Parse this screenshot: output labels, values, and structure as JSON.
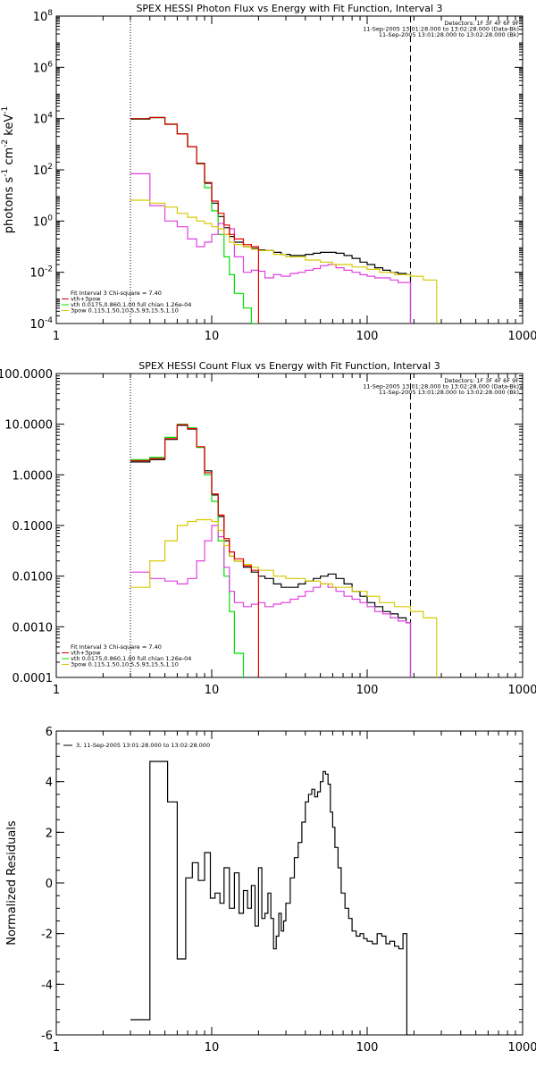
{
  "chart_data": [
    {
      "id": "photon",
      "type": "line",
      "title": "SPEX HESSI Photon Flux vs Energy with Fit Function, Interval 3",
      "ylabel_parts": [
        "photons s",
        "-1",
        " cm",
        "-2",
        " keV",
        "-1"
      ],
      "xlim": [
        1,
        1000
      ],
      "ylim": [
        0.0001,
        100000000
      ],
      "xscale": "log",
      "yscale": "log",
      "x_tick_labels": [
        "1",
        "10",
        "100",
        "1000"
      ],
      "y_tick_labels": [
        "10^-4",
        "10^-2",
        "10^0",
        "10^2",
        "10^4",
        "10^6",
        "10^8"
      ],
      "vlines": [
        {
          "x": 3,
          "style": "dotted"
        },
        {
          "x": 190,
          "style": "dashed"
        }
      ],
      "info_top": [
        "Detectors: 1F 3F 4F 6F 9F",
        "11-Sep-2005 13:01:28.000 to 13:02:28.000 (Data-Bk)",
        "11-Sep-2005 13:01:28.000 to 13:02:28.000 (Bk)"
      ],
      "info_bottom": [
        "Fit Interval 3   Chi-square = 7.40",
        "vth+3pow",
        "vth 0.0175,0.860,1.00  full chian 1.26e-04",
        "3pow 0.115,1.50,10.5,5.93,15.5,1.10"
      ],
      "series": [
        {
          "color": "#000000",
          "x": [
            3,
            4,
            5,
            6,
            7,
            8,
            9,
            10,
            11,
            12,
            13,
            14,
            16,
            18,
            20,
            22,
            25,
            28,
            32,
            36,
            40,
            45,
            50,
            56,
            63,
            71,
            80,
            90,
            100,
            112,
            126,
            141,
            158,
            178,
            190
          ],
          "y": [
            9500,
            11000,
            6000,
            2500,
            800,
            180,
            30,
            5,
            1.5,
            0.55,
            0.25,
            0.15,
            0.1,
            0.085,
            0.075,
            0.07,
            0.06,
            0.05,
            0.045,
            0.045,
            0.05,
            0.055,
            0.06,
            0.06,
            0.055,
            0.045,
            0.035,
            0.025,
            0.02,
            0.015,
            0.012,
            0.01,
            0.009,
            0.008,
            0.0001
          ]
        },
        {
          "color": "#00e000",
          "x": [
            3,
            4,
            5,
            6,
            7,
            8,
            9,
            10,
            11,
            12,
            13,
            14,
            16,
            18,
            20
          ],
          "y": [
            10000,
            11000,
            6000,
            2500,
            800,
            170,
            20,
            2.5,
            0.3,
            0.04,
            0.008,
            0.0015,
            0.0004,
            0.0001,
            5e-05
          ]
        },
        {
          "color": "#e040e0",
          "x": [
            3,
            4,
            5,
            6,
            7,
            8,
            9,
            10,
            11,
            12,
            13,
            14,
            16,
            18,
            20,
            22,
            25,
            28,
            32,
            36,
            40,
            45,
            50,
            56,
            63,
            71,
            80,
            90,
            100,
            112,
            126,
            141,
            158,
            178,
            190
          ],
          "y": [
            70,
            4,
            1,
            0.6,
            0.2,
            0.1,
            0.15,
            0.3,
            0.8,
            0.3,
            0.5,
            0.04,
            0.01,
            0.012,
            0.011,
            0.006,
            0.008,
            0.007,
            0.009,
            0.01,
            0.012,
            0.014,
            0.018,
            0.02,
            0.015,
            0.012,
            0.01,
            0.008,
            0.007,
            0.006,
            0.006,
            0.005,
            0.004,
            0.004,
            0.0001
          ]
        },
        {
          "color": "#d8c800",
          "x": [
            3,
            4,
            5,
            6,
            7,
            8,
            9,
            10,
            11,
            12,
            13,
            14,
            16,
            18,
            20,
            25,
            30,
            40,
            50,
            60,
            80,
            100,
            120,
            150,
            190,
            230,
            280
          ],
          "y": [
            6.5,
            5,
            3.5,
            2,
            1.4,
            1,
            0.8,
            0.6,
            0.5,
            0.3,
            0.15,
            0.12,
            0.1,
            0.08,
            0.07,
            0.05,
            0.04,
            0.03,
            0.025,
            0.02,
            0.016,
            0.013,
            0.01,
            0.008,
            0.007,
            0.005,
            0.0001
          ]
        },
        {
          "color": "#e00000",
          "x": [
            3,
            4,
            5,
            6,
            7,
            8,
            9,
            10,
            11,
            12,
            13,
            14,
            16,
            18,
            20
          ],
          "y": [
            10000,
            11000,
            6000,
            2500,
            800,
            175,
            32,
            6,
            2,
            0.7,
            0.3,
            0.2,
            0.12,
            0.1,
            0.09
          ]
        }
      ]
    },
    {
      "id": "count",
      "type": "line",
      "title": "SPEX HESSI Count Flux vs Energy with Fit Function, Interval 3",
      "ylabel_parts": [],
      "xlim": [
        1,
        1000
      ],
      "ylim": [
        0.0001,
        100
      ],
      "xscale": "log",
      "yscale": "log",
      "x_tick_labels": [
        "1",
        "10",
        "100",
        "1000"
      ],
      "y_tick_labels": [
        "0.0001",
        "0.0010",
        "0.0100",
        "0.1000",
        "1.0000",
        "10.0000",
        "100.0000"
      ],
      "vlines": [
        {
          "x": 3,
          "style": "dotted"
        },
        {
          "x": 190,
          "style": "dashed"
        }
      ],
      "info_top": [
        "Detectors: 1F 3F 4F 6F 9F",
        "11-Sep-2005 13:01:28.000 to 13:02:28.000 (Data-Bk)",
        "11-Sep-2005 13:01:28.000 to 13:02:28.000 (Bk)"
      ],
      "info_bottom": [
        "Fit Interval 3   Chi-square = 7.40",
        "vth+3pow",
        "vth 0.0175,0.860,1.00  full chian 1.26e-04",
        "3pow 0.115,1.50,10.5,5.93,15.5,1.10"
      ],
      "series": [
        {
          "color": "#000000",
          "x": [
            3,
            4,
            5,
            6,
            7,
            8,
            9,
            10,
            11,
            12,
            13,
            14,
            16,
            18,
            20,
            22,
            25,
            28,
            32,
            36,
            40,
            45,
            50,
            56,
            63,
            71,
            80,
            90,
            100,
            112,
            126,
            141,
            158,
            178,
            190
          ],
          "y": [
            1.8,
            2,
            5,
            9.5,
            8,
            3.5,
            1.2,
            0.4,
            0.15,
            0.05,
            0.025,
            0.02,
            0.015,
            0.012,
            0.01,
            0.009,
            0.007,
            0.006,
            0.006,
            0.007,
            0.008,
            0.009,
            0.01,
            0.011,
            0.009,
            0.007,
            0.005,
            0.004,
            0.003,
            0.0025,
            0.002,
            0.0018,
            0.0015,
            0.0012,
            0.0001
          ]
        },
        {
          "color": "#00e000",
          "x": [
            3,
            4,
            5,
            6,
            7,
            8,
            9,
            10,
            11,
            12,
            13,
            14,
            16,
            18
          ],
          "y": [
            2,
            2.2,
            5.5,
            10,
            8.5,
            3.5,
            1,
            0.3,
            0.05,
            0.01,
            0.002,
            0.0003,
            8e-05,
            5e-05
          ]
        },
        {
          "color": "#e040e0",
          "x": [
            3,
            4,
            5,
            6,
            7,
            8,
            9,
            10,
            11,
            12,
            13,
            14,
            16,
            18,
            20,
            22,
            25,
            28,
            32,
            36,
            40,
            45,
            50,
            56,
            63,
            71,
            80,
            90,
            100,
            112,
            126,
            141,
            158,
            178,
            190
          ],
          "y": [
            0.012,
            0.009,
            0.008,
            0.007,
            0.009,
            0.02,
            0.05,
            0.1,
            0.06,
            0.015,
            0.005,
            0.003,
            0.0025,
            0.0028,
            0.003,
            0.0025,
            0.0028,
            0.003,
            0.0035,
            0.004,
            0.005,
            0.006,
            0.007,
            0.006,
            0.005,
            0.004,
            0.0035,
            0.003,
            0.0025,
            0.002,
            0.0018,
            0.0015,
            0.0013,
            0.0012,
            0.0001
          ]
        },
        {
          "color": "#d8c800",
          "x": [
            3,
            4,
            5,
            6,
            7,
            8,
            9,
            10,
            11,
            12,
            13,
            14,
            16,
            18,
            20,
            25,
            30,
            40,
            50,
            60,
            80,
            100,
            120,
            150,
            190,
            230,
            280
          ],
          "y": [
            0.006,
            0.02,
            0.05,
            0.1,
            0.12,
            0.13,
            0.13,
            0.12,
            0.08,
            0.04,
            0.025,
            0.02,
            0.017,
            0.015,
            0.013,
            0.01,
            0.009,
            0.008,
            0.007,
            0.006,
            0.005,
            0.004,
            0.003,
            0.0025,
            0.002,
            0.0015,
            0.0001
          ]
        },
        {
          "color": "#e00000",
          "x": [
            3,
            4,
            5,
            6,
            7,
            8,
            9,
            10,
            11,
            12,
            13,
            14,
            16,
            18,
            20
          ],
          "y": [
            1.9,
            2.1,
            5.2,
            9.8,
            8.2,
            3.6,
            1.1,
            0.42,
            0.16,
            0.055,
            0.03,
            0.022,
            0.016,
            0.013,
            0.011
          ]
        }
      ]
    },
    {
      "id": "residuals",
      "type": "line",
      "title": "",
      "ylabel": "Normalized Residuals",
      "xlim": [
        1,
        1000
      ],
      "ylim": [
        -6,
        6
      ],
      "xscale": "log",
      "yscale": "linear",
      "x_tick_labels": [
        "1",
        "10",
        "100",
        "1000"
      ],
      "y_tick_labels": [
        "-6",
        "-4",
        "-2",
        "0",
        "2",
        "4",
        "6"
      ],
      "legend": "3, 11-Sep-2005 13:01:28.000 to 13:02:28.000",
      "series": [
        {
          "color": "#000000",
          "x": [
            3,
            4,
            4.5,
            5.2,
            6,
            6.8,
            7.5,
            8.2,
            9,
            9.8,
            10.5,
            11.3,
            12,
            13,
            14,
            15,
            16,
            17,
            18,
            19,
            20,
            21,
            22,
            23,
            24,
            25,
            26,
            27,
            28,
            29,
            30,
            32,
            34,
            36,
            38,
            40,
            42,
            44,
            46,
            48,
            50,
            52,
            54,
            56,
            58,
            60,
            62,
            65,
            68,
            72,
            76,
            80,
            85,
            90,
            95,
            100,
            108,
            116,
            124,
            132,
            140,
            150,
            160,
            170,
            180,
            190
          ],
          "y": [
            -5.4,
            4.8,
            4.8,
            3.2,
            -3,
            0.2,
            0.8,
            0.1,
            1.2,
            -0.6,
            -0.4,
            -0.8,
            0.6,
            -1.0,
            0.4,
            -1.2,
            -0.3,
            -1.0,
            -0.1,
            -1.7,
            0.6,
            -1.4,
            -1.2,
            -0.4,
            -1.4,
            -2.6,
            -2.1,
            -1.2,
            -1.9,
            -1.5,
            -0.8,
            0.2,
            1.0,
            1.6,
            2.4,
            3.2,
            3.5,
            3.7,
            3.4,
            3.6,
            4.0,
            4.4,
            4.3,
            3.9,
            2.8,
            2.2,
            1.4,
            0.6,
            -0.4,
            -1.0,
            -1.4,
            -1.9,
            -2.1,
            -2.0,
            -2.2,
            -2.3,
            -2.4,
            -2.0,
            -2.1,
            -2.4,
            -2.3,
            -2.5,
            -2.6,
            -2.0,
            -6.0,
            -6.0
          ]
        }
      ]
    }
  ]
}
